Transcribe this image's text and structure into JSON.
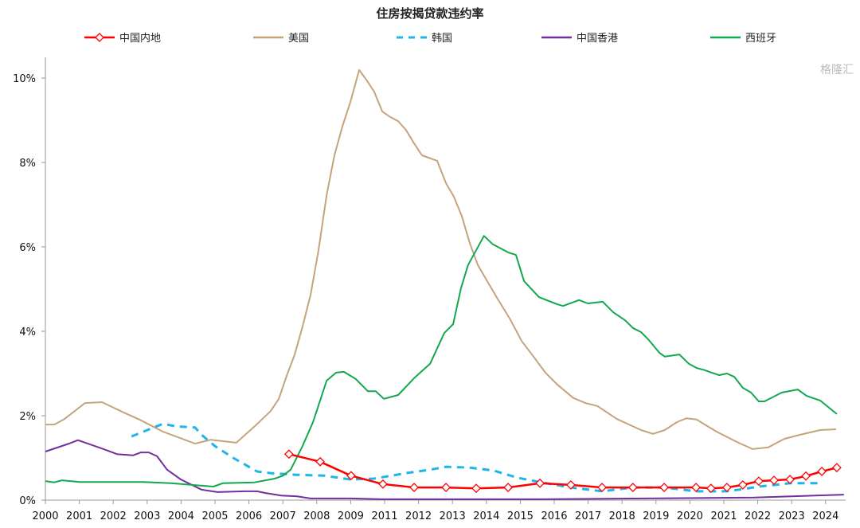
{
  "chart_data": {
    "type": "line",
    "title": "住房按揭贷款违约率",
    "xlabel": "",
    "ylabel": "",
    "x_note": "x values are positions on the category axis (0 = first tick label)",
    "x_tick_labels": [
      "2000",
      "2001",
      "2002",
      "2003",
      "2004",
      "2005",
      "2006",
      "2007",
      "2008",
      "2009",
      "2011",
      "2012",
      "2013",
      "2014",
      "2015",
      "2016",
      "2017",
      "2018",
      "2019",
      "2020",
      "2021",
      "2022",
      "2023",
      "2024"
    ],
    "xlim": [
      0,
      23.6
    ],
    "ylim": [
      0,
      10.5
    ],
    "y_ticks": [
      0,
      2,
      4,
      6,
      8,
      10
    ],
    "y_tick_labels": [
      "0%",
      "2%",
      "4%",
      "6%",
      "8%",
      "10%"
    ],
    "grid": false,
    "legend_position": "top",
    "series": [
      {
        "name": "中国内地",
        "color": "#ff0000",
        "marker": "diamond",
        "dash": false,
        "points": [
          [
            7.18,
            1.09
          ],
          [
            8.1,
            0.91
          ],
          [
            9.01,
            0.58
          ],
          [
            9.95,
            0.38
          ],
          [
            10.87,
            0.3
          ],
          [
            11.81,
            0.3
          ],
          [
            12.7,
            0.28
          ],
          [
            13.64,
            0.3
          ],
          [
            14.58,
            0.4
          ],
          [
            15.49,
            0.36
          ],
          [
            16.41,
            0.3
          ],
          [
            17.32,
            0.3
          ],
          [
            18.24,
            0.3
          ],
          [
            19.18,
            0.3
          ],
          [
            19.62,
            0.28
          ],
          [
            20.09,
            0.3
          ],
          [
            20.56,
            0.36
          ],
          [
            21.03,
            0.45
          ],
          [
            21.48,
            0.47
          ],
          [
            21.95,
            0.49
          ],
          [
            22.42,
            0.57
          ],
          [
            22.89,
            0.68
          ],
          [
            23.33,
            0.77
          ]
        ]
      },
      {
        "name": "美国",
        "color": "#c4a47c",
        "marker": "none",
        "dash": false,
        "points": [
          [
            0,
            1.79
          ],
          [
            0.26,
            1.79
          ],
          [
            0.54,
            1.91
          ],
          [
            1.17,
            2.3
          ],
          [
            1.67,
            2.32
          ],
          [
            2.3,
            2.08
          ],
          [
            2.77,
            1.91
          ],
          [
            3.47,
            1.62
          ],
          [
            4.41,
            1.34
          ],
          [
            4.88,
            1.43
          ],
          [
            5.63,
            1.36
          ],
          [
            6.17,
            1.75
          ],
          [
            6.64,
            2.11
          ],
          [
            6.88,
            2.4
          ],
          [
            7.11,
            2.94
          ],
          [
            7.35,
            3.45
          ],
          [
            7.58,
            4.11
          ],
          [
            7.82,
            4.87
          ],
          [
            8.05,
            5.91
          ],
          [
            8.29,
            7.23
          ],
          [
            8.52,
            8.17
          ],
          [
            8.76,
            8.87
          ],
          [
            8.99,
            9.43
          ],
          [
            9.25,
            10.19
          ],
          [
            9.46,
            9.96
          ],
          [
            9.69,
            9.68
          ],
          [
            9.93,
            9.21
          ],
          [
            10.16,
            9.08
          ],
          [
            10.4,
            8.98
          ],
          [
            10.63,
            8.77
          ],
          [
            10.87,
            8.45
          ],
          [
            11.1,
            8.17
          ],
          [
            11.55,
            8.04
          ],
          [
            11.81,
            7.51
          ],
          [
            12.04,
            7.19
          ],
          [
            12.28,
            6.72
          ],
          [
            12.51,
            6.09
          ],
          [
            12.75,
            5.57
          ],
          [
            12.98,
            5.25
          ],
          [
            13.33,
            4.77
          ],
          [
            13.69,
            4.3
          ],
          [
            14.04,
            3.77
          ],
          [
            14.39,
            3.4
          ],
          [
            14.74,
            3.02
          ],
          [
            15.09,
            2.74
          ],
          [
            15.56,
            2.42
          ],
          [
            15.92,
            2.3
          ],
          [
            16.27,
            2.23
          ],
          [
            16.85,
            1.92
          ],
          [
            17.56,
            1.66
          ],
          [
            17.91,
            1.57
          ],
          [
            18.26,
            1.66
          ],
          [
            18.62,
            1.85
          ],
          [
            18.9,
            1.94
          ],
          [
            19.2,
            1.91
          ],
          [
            19.44,
            1.79
          ],
          [
            19.79,
            1.62
          ],
          [
            20.38,
            1.38
          ],
          [
            20.85,
            1.21
          ],
          [
            21.31,
            1.25
          ],
          [
            21.78,
            1.45
          ],
          [
            22.25,
            1.55
          ],
          [
            22.84,
            1.66
          ],
          [
            23.31,
            1.68
          ]
        ]
      },
      {
        "name": "韩国",
        "color": "#1fb4ea",
        "marker": "none",
        "dash": true,
        "points": [
          [
            2.54,
            1.51
          ],
          [
            3.47,
            1.81
          ],
          [
            3.83,
            1.75
          ],
          [
            4.41,
            1.72
          ],
          [
            4.6,
            1.55
          ],
          [
            5.0,
            1.28
          ],
          [
            5.54,
            1.0
          ],
          [
            6.24,
            0.68
          ],
          [
            6.64,
            0.64
          ],
          [
            7.42,
            0.6
          ],
          [
            8.22,
            0.58
          ],
          [
            8.99,
            0.49
          ],
          [
            9.69,
            0.51
          ],
          [
            10.63,
            0.64
          ],
          [
            11.34,
            0.72
          ],
          [
            11.81,
            0.79
          ],
          [
            12.51,
            0.77
          ],
          [
            13.22,
            0.7
          ],
          [
            13.92,
            0.53
          ],
          [
            14.62,
            0.42
          ],
          [
            15.49,
            0.3
          ],
          [
            16.41,
            0.21
          ],
          [
            17.32,
            0.3
          ],
          [
            18.24,
            0.3
          ],
          [
            19.18,
            0.21
          ],
          [
            20.09,
            0.21
          ],
          [
            20.56,
            0.26
          ],
          [
            21.03,
            0.32
          ],
          [
            21.95,
            0.4
          ],
          [
            22.79,
            0.4
          ]
        ]
      },
      {
        "name": "中国香港",
        "color": "#7030a0",
        "marker": "none",
        "dash": false,
        "points": [
          [
            0,
            1.15
          ],
          [
            0.7,
            1.34
          ],
          [
            0.96,
            1.42
          ],
          [
            1.64,
            1.23
          ],
          [
            2.11,
            1.09
          ],
          [
            2.58,
            1.06
          ],
          [
            2.82,
            1.13
          ],
          [
            3.05,
            1.13
          ],
          [
            3.29,
            1.04
          ],
          [
            3.59,
            0.72
          ],
          [
            3.99,
            0.49
          ],
          [
            4.6,
            0.25
          ],
          [
            5.07,
            0.19
          ],
          [
            5.87,
            0.21
          ],
          [
            6.24,
            0.21
          ],
          [
            6.48,
            0.17
          ],
          [
            6.95,
            0.11
          ],
          [
            7.42,
            0.09
          ],
          [
            7.82,
            0.04
          ],
          [
            8.99,
            0.04
          ],
          [
            9.93,
            0.02
          ],
          [
            14.62,
            0.02
          ],
          [
            20.89,
            0.06
          ],
          [
            23.54,
            0.13
          ]
        ]
      },
      {
        "name": "西班牙",
        "color": "#12a84f",
        "marker": "none",
        "dash": false,
        "points": [
          [
            0,
            0.45
          ],
          [
            0.26,
            0.42
          ],
          [
            0.49,
            0.47
          ],
          [
            1.01,
            0.43
          ],
          [
            1.95,
            0.43
          ],
          [
            2.89,
            0.43
          ],
          [
            3.71,
            0.4
          ],
          [
            4.65,
            0.34
          ],
          [
            4.95,
            0.32
          ],
          [
            5.23,
            0.4
          ],
          [
            6.17,
            0.42
          ],
          [
            6.76,
            0.51
          ],
          [
            7.0,
            0.58
          ],
          [
            7.23,
            0.72
          ],
          [
            7.58,
            1.28
          ],
          [
            7.89,
            1.85
          ],
          [
            8.29,
            2.83
          ],
          [
            8.57,
            3.02
          ],
          [
            8.8,
            3.04
          ],
          [
            9.15,
            2.87
          ],
          [
            9.51,
            2.58
          ],
          [
            9.74,
            2.58
          ],
          [
            9.98,
            2.4
          ],
          [
            10.4,
            2.49
          ],
          [
            10.87,
            2.89
          ],
          [
            11.34,
            3.23
          ],
          [
            11.76,
            3.96
          ],
          [
            12.02,
            4.17
          ],
          [
            12.25,
            5.02
          ],
          [
            12.46,
            5.57
          ],
          [
            12.93,
            6.26
          ],
          [
            13.19,
            6.06
          ],
          [
            13.64,
            5.87
          ],
          [
            13.87,
            5.81
          ],
          [
            14.11,
            5.19
          ],
          [
            14.55,
            4.81
          ],
          [
            15.09,
            4.64
          ],
          [
            15.26,
            4.6
          ],
          [
            15.73,
            4.74
          ],
          [
            15.99,
            4.66
          ],
          [
            16.43,
            4.7
          ],
          [
            16.74,
            4.45
          ],
          [
            17.09,
            4.26
          ],
          [
            17.32,
            4.08
          ],
          [
            17.56,
            3.98
          ],
          [
            17.79,
            3.79
          ],
          [
            18.1,
            3.49
          ],
          [
            18.26,
            3.4
          ],
          [
            18.69,
            3.45
          ],
          [
            18.97,
            3.23
          ],
          [
            19.2,
            3.13
          ],
          [
            19.39,
            3.09
          ],
          [
            19.86,
            2.96
          ],
          [
            20.09,
            3.0
          ],
          [
            20.31,
            2.92
          ],
          [
            20.56,
            2.66
          ],
          [
            20.8,
            2.55
          ],
          [
            21.03,
            2.34
          ],
          [
            21.2,
            2.34
          ],
          [
            21.71,
            2.55
          ],
          [
            22.18,
            2.62
          ],
          [
            22.44,
            2.47
          ],
          [
            22.84,
            2.36
          ],
          [
            23.33,
            2.04
          ]
        ]
      }
    ]
  },
  "watermark": "格隆汇"
}
